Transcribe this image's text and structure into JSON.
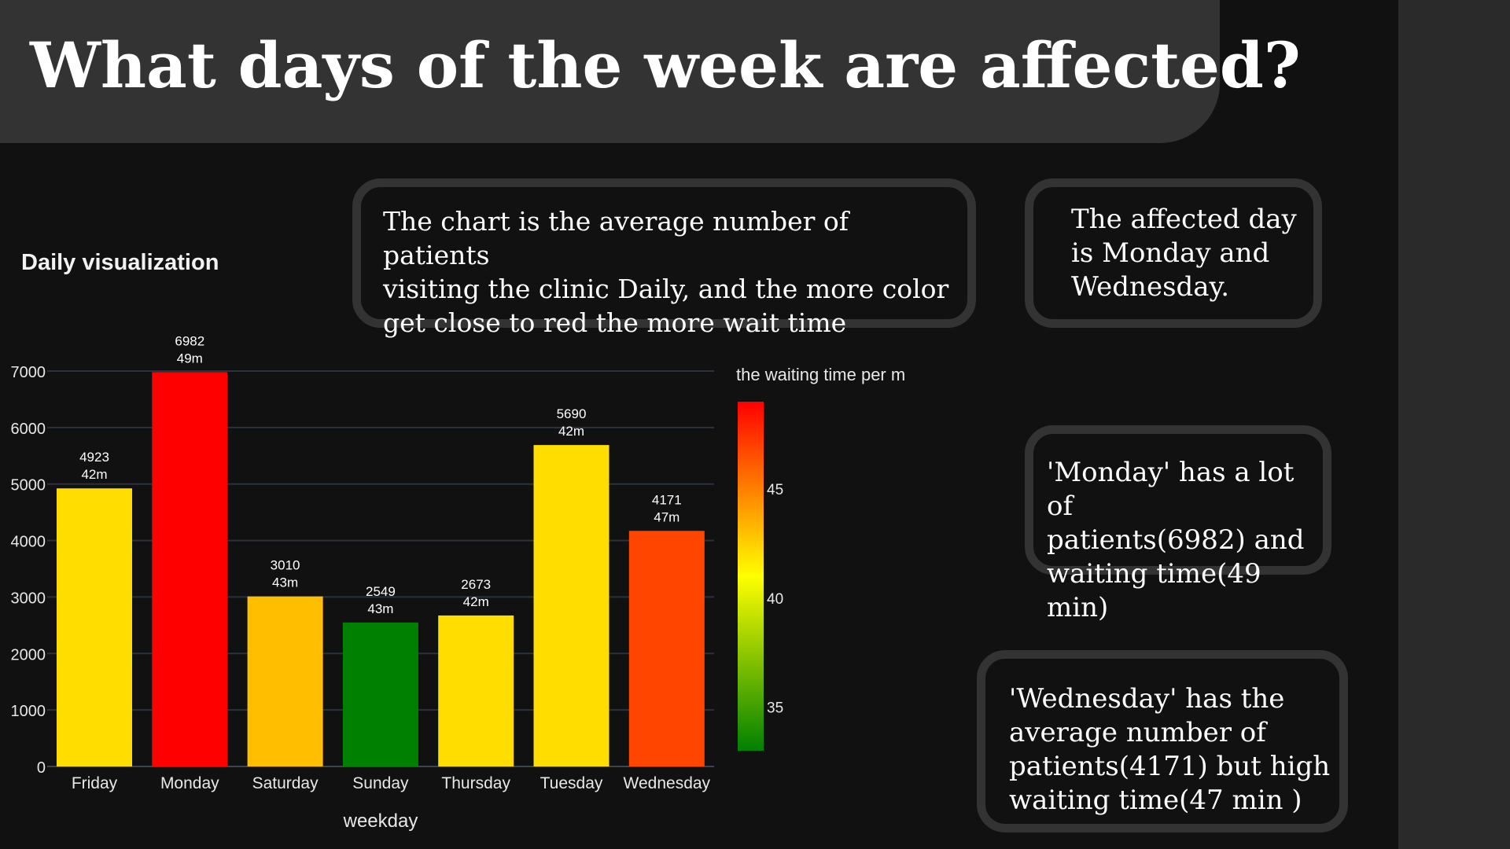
{
  "title": "What days of the week are affected?",
  "boxes": {
    "description": "The chart is the average number of patients\nvisiting the clinic Daily, and the more color\nget close to red the more wait time",
    "affected": "The affected day\nis Monday and\nWednesday.",
    "monday": "'Monday' has a lot of\npatients(6982) and\nwaiting time(49 min)",
    "wednesday": "'Wednesday' has the\naverage number of\npatients(4171) but high\nwaiting time(47 min )"
  },
  "chart_heading": "Daily visualization",
  "chart_data": {
    "type": "bar",
    "categories": [
      "Friday",
      "Monday",
      "Saturday",
      "Sunday",
      "Thursday",
      "Tuesday",
      "Wednesday"
    ],
    "values": [
      4923,
      6982,
      3010,
      2549,
      2673,
      5690,
      4171
    ],
    "wait_minutes": [
      42,
      49,
      43,
      43,
      42,
      42,
      47
    ],
    "value_labels": [
      "4923",
      "6982",
      "3010",
      "2549",
      "2673",
      "5690",
      "4171"
    ],
    "wait_labels": [
      "42m",
      "49m",
      "43m",
      "43m",
      "42m",
      "42m",
      "47m"
    ],
    "bar_colors": [
      "#ffdd00",
      "#ff0000",
      "#ffbf00",
      "#008000",
      "#ffdd00",
      "#ffdd00",
      "#ff4500"
    ],
    "xlabel": "weekday",
    "ylabel": "",
    "ylim": [
      0,
      7000
    ],
    "yticks": [
      0,
      1000,
      2000,
      3000,
      4000,
      5000,
      6000,
      7000
    ],
    "grid": true,
    "colorbar": {
      "title": "the waiting time per m",
      "range": [
        33,
        49
      ],
      "ticks": [
        35,
        40,
        45
      ],
      "colors": [
        "#008000",
        "#ffff00",
        "#ff0000"
      ]
    }
  },
  "colors": {
    "background": "#111111",
    "title_bar": "#333333",
    "box_border": "#333333"
  }
}
